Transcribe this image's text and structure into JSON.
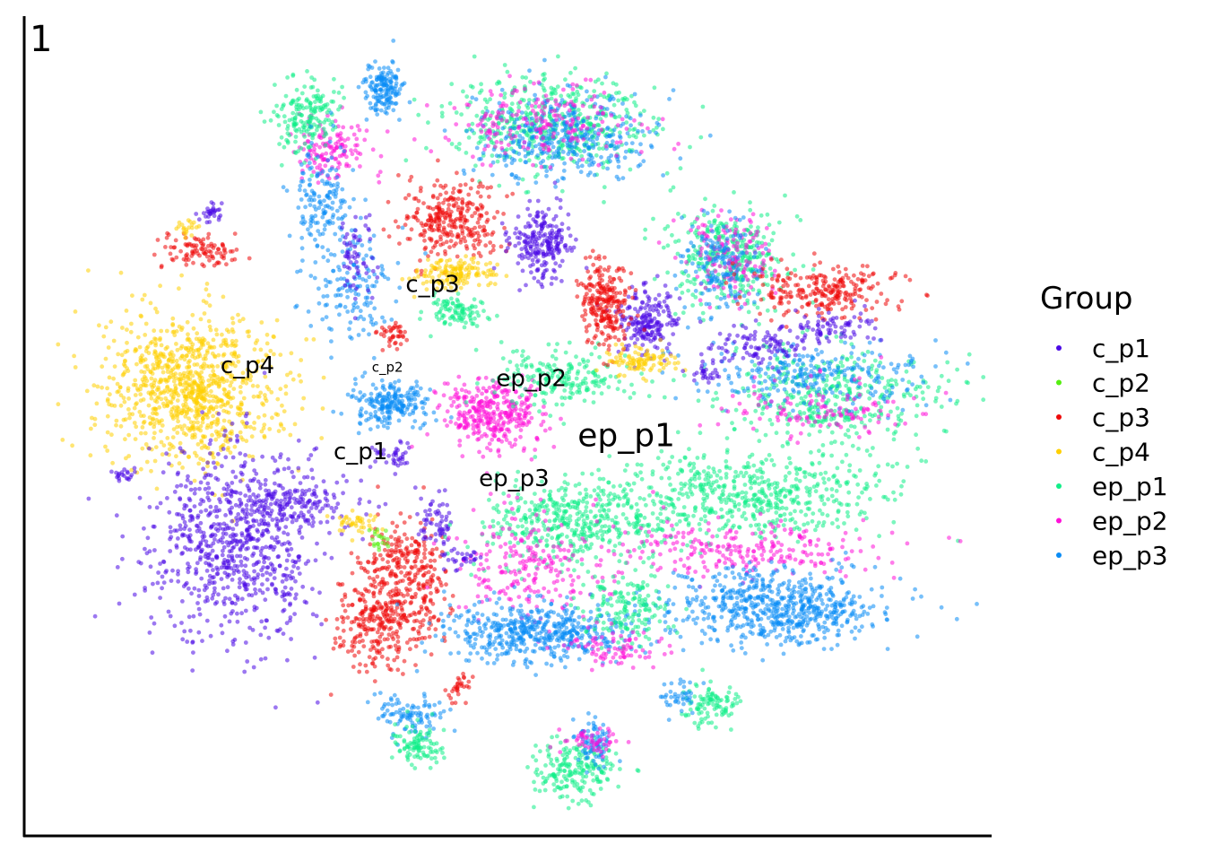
{
  "chart_data": {
    "type": "scatter",
    "panel_label": "1",
    "title": "",
    "xlabel": "",
    "ylabel": "",
    "grid": false,
    "axis_ticks": false,
    "legend_position": "right",
    "legend": {
      "title": "Group",
      "entries": [
        {
          "name": "c_p1",
          "color": "#4B0AE6"
        },
        {
          "name": "c_p2",
          "color": "#55EE11"
        },
        {
          "name": "c_p3",
          "color": "#EE0A0A"
        },
        {
          "name": "c_p4",
          "color": "#FFD000"
        },
        {
          "name": "ep_p1",
          "color": "#11EE88"
        },
        {
          "name": "ep_p2",
          "color": "#FF11D8"
        },
        {
          "name": "ep_p3",
          "color": "#0A8CF5"
        }
      ]
    },
    "xlim": [
      0,
      100
    ],
    "ylim": [
      0,
      100
    ],
    "point_opacity": 0.55,
    "cluster_labels": [
      {
        "text": "c_p1",
        "x": 34.6,
        "y": 45.8,
        "size": "medium"
      },
      {
        "text": "c_p2",
        "x": 37.4,
        "y": 56.6,
        "size": "small"
      },
      {
        "text": "c_p3",
        "x": 42.1,
        "y": 66.4,
        "size": "medium"
      },
      {
        "text": "c_p4",
        "x": 22.8,
        "y": 56.4,
        "size": "medium"
      },
      {
        "text": "ep_p1",
        "x": 62.3,
        "y": 47.4,
        "size": "large"
      },
      {
        "text": "ep_p2",
        "x": 52.4,
        "y": 54.8,
        "size": "medium"
      },
      {
        "text": "ep_p3",
        "x": 50.6,
        "y": 42.5,
        "size": "medium"
      }
    ],
    "clusters": [
      {
        "group": "c_p4",
        "cx": 17.0,
        "cy": 54.5,
        "sx": 4.6,
        "sy": 4.5,
        "n": 950
      },
      {
        "group": "c_p1",
        "cx": 21.5,
        "cy": 35.8,
        "sx": 4.4,
        "sy": 6.0,
        "n": 800
      },
      {
        "group": "c_p1",
        "cx": 28.0,
        "cy": 40.5,
        "sx": 3.2,
        "sy": 1.2,
        "n": 120
      },
      {
        "group": "c_p3",
        "cx": 36.5,
        "cy": 25.8,
        "sx": 2.2,
        "sy": 3.0,
        "n": 280
      },
      {
        "group": "c_p3",
        "cx": 38.5,
        "cy": 32.5,
        "sx": 2.0,
        "sy": 3.0,
        "n": 200
      },
      {
        "group": "c_p3",
        "cx": 41.8,
        "cy": 30.5,
        "sx": 1.0,
        "sy": 3.5,
        "n": 80
      },
      {
        "group": "c_p4",
        "cx": 34.0,
        "cy": 38.0,
        "sx": 1.2,
        "sy": 0.8,
        "n": 40
      },
      {
        "group": "c_p2",
        "cx": 36.5,
        "cy": 36.0,
        "sx": 0.6,
        "sy": 0.6,
        "n": 20
      },
      {
        "group": "c_p1",
        "cx": 42.5,
        "cy": 38.3,
        "sx": 0.9,
        "sy": 1.5,
        "n": 60
      },
      {
        "group": "c_p1",
        "cx": 38.0,
        "cy": 46.3,
        "sx": 1.0,
        "sy": 0.8,
        "n": 40
      },
      {
        "group": "ep_p3",
        "cx": 37.8,
        "cy": 52.5,
        "sx": 2.0,
        "sy": 1.5,
        "n": 220
      },
      {
        "group": "ep_p2",
        "cx": 48.5,
        "cy": 51.5,
        "sx": 2.7,
        "sy": 2.2,
        "n": 350
      },
      {
        "group": "ep_p1",
        "cx": 55.5,
        "cy": 56.0,
        "sx": 3.5,
        "sy": 1.8,
        "n": 200
      },
      {
        "group": "ep_p1",
        "cx": 57.0,
        "cy": 38.0,
        "sx": 5.0,
        "sy": 2.5,
        "n": 450
      },
      {
        "group": "ep_p1",
        "cx": 75.0,
        "cy": 41.5,
        "sx": 7.0,
        "sy": 2.5,
        "n": 550
      },
      {
        "group": "ep_p2",
        "cx": 74.0,
        "cy": 34.5,
        "sx": 7.5,
        "sy": 1.8,
        "n": 250
      },
      {
        "group": "ep_p2",
        "cx": 52.5,
        "cy": 32.5,
        "sx": 4.0,
        "sy": 3.5,
        "n": 220
      },
      {
        "group": "ep_p3",
        "cx": 53.0,
        "cy": 24.5,
        "sx": 5.0,
        "sy": 1.8,
        "n": 500
      },
      {
        "group": "ep_p3",
        "cx": 78.0,
        "cy": 27.5,
        "sx": 5.5,
        "sy": 2.3,
        "n": 650
      },
      {
        "group": "ep_p1",
        "cx": 62.5,
        "cy": 27.5,
        "sx": 2.3,
        "sy": 2.3,
        "n": 160
      },
      {
        "group": "ep_p2",
        "cx": 61.5,
        "cy": 22.5,
        "sx": 2.5,
        "sy": 1.2,
        "n": 80
      },
      {
        "group": "ep_p1",
        "cx": 73.0,
        "cy": 70.5,
        "sx": 3.0,
        "sy": 3.0,
        "n": 350
      },
      {
        "group": "ep_p2",
        "cx": 73.0,
        "cy": 71.0,
        "sx": 2.2,
        "sy": 2.8,
        "n": 150
      },
      {
        "group": "ep_p3",
        "cx": 72.0,
        "cy": 69.5,
        "sx": 2.0,
        "sy": 2.8,
        "n": 150
      },
      {
        "group": "ep_p1",
        "cx": 84.0,
        "cy": 53.5,
        "sx": 6.0,
        "sy": 3.0,
        "n": 400
      },
      {
        "group": "ep_p3",
        "cx": 82.0,
        "cy": 56.0,
        "sx": 5.5,
        "sy": 2.0,
        "n": 250
      },
      {
        "group": "ep_p2",
        "cx": 82.0,
        "cy": 52.0,
        "sx": 5.0,
        "sy": 1.8,
        "n": 120
      },
      {
        "group": "c_p3",
        "cx": 83.5,
        "cy": 66.5,
        "sx": 4.0,
        "sy": 1.5,
        "n": 250
      },
      {
        "group": "c_p1",
        "cx": 84.0,
        "cy": 62.0,
        "sx": 2.5,
        "sy": 1.2,
        "n": 80
      },
      {
        "group": "c_p1",
        "cx": 76.0,
        "cy": 60.0,
        "sx": 2.5,
        "sy": 1.3,
        "n": 100
      },
      {
        "group": "c_p1",
        "cx": 64.5,
        "cy": 63.0,
        "sx": 1.5,
        "sy": 2.0,
        "n": 200
      },
      {
        "group": "c_p3",
        "cx": 60.0,
        "cy": 65.0,
        "sx": 1.3,
        "sy": 2.5,
        "n": 250
      },
      {
        "group": "c_p4",
        "cx": 64.0,
        "cy": 57.8,
        "sx": 1.8,
        "sy": 0.9,
        "n": 100
      },
      {
        "group": "c_p1",
        "cx": 70.5,
        "cy": 56.5,
        "sx": 1.0,
        "sy": 1.0,
        "n": 30
      },
      {
        "group": "ep_p1",
        "cx": 54.5,
        "cy": 87.0,
        "sx": 5.0,
        "sy": 3.0,
        "n": 500
      },
      {
        "group": "ep_p3",
        "cx": 56.0,
        "cy": 85.5,
        "sx": 4.5,
        "sy": 2.5,
        "n": 350
      },
      {
        "group": "ep_p2",
        "cx": 54.0,
        "cy": 87.5,
        "sx": 4.5,
        "sy": 2.5,
        "n": 200
      },
      {
        "group": "c_p3",
        "cx": 44.0,
        "cy": 75.0,
        "sx": 2.5,
        "sy": 2.3,
        "n": 300
      },
      {
        "group": "c_p4",
        "cx": 44.5,
        "cy": 68.8,
        "sx": 2.3,
        "sy": 0.9,
        "n": 150
      },
      {
        "group": "c_p1",
        "cx": 53.5,
        "cy": 72.5,
        "sx": 1.7,
        "sy": 2.3,
        "n": 230
      },
      {
        "group": "ep_p1",
        "cx": 44.5,
        "cy": 64.0,
        "sx": 1.5,
        "sy": 1.0,
        "n": 100
      },
      {
        "group": "ep_p2",
        "cx": 31.5,
        "cy": 84.0,
        "sx": 2.0,
        "sy": 2.0,
        "n": 140
      },
      {
        "group": "ep_p1",
        "cx": 28.8,
        "cy": 88.0,
        "sx": 1.7,
        "sy": 2.2,
        "n": 180
      },
      {
        "group": "ep_p3",
        "cx": 37.0,
        "cy": 91.5,
        "sx": 1.0,
        "sy": 1.5,
        "n": 160
      },
      {
        "group": "ep_p3",
        "cx": 30.5,
        "cy": 77.0,
        "sx": 1.6,
        "sy": 3.5,
        "n": 150
      },
      {
        "group": "ep_p3",
        "cx": 33.5,
        "cy": 67.0,
        "sx": 2.0,
        "sy": 4.0,
        "n": 150
      },
      {
        "group": "c_p1",
        "cx": 34.0,
        "cy": 70.0,
        "sx": 1.0,
        "sy": 3.0,
        "n": 60
      },
      {
        "group": "c_p1",
        "cx": 19.0,
        "cy": 76.5,
        "sx": 0.7,
        "sy": 0.7,
        "n": 30
      },
      {
        "group": "c_p3",
        "cx": 17.5,
        "cy": 71.5,
        "sx": 2.0,
        "sy": 1.0,
        "n": 100
      },
      {
        "group": "c_p4",
        "cx": 16.5,
        "cy": 74.5,
        "sx": 0.7,
        "sy": 0.5,
        "n": 20
      },
      {
        "group": "c_p3",
        "cx": 38.0,
        "cy": 61.2,
        "sx": 0.8,
        "sy": 0.7,
        "n": 40
      },
      {
        "group": "c_p1",
        "cx": 10.0,
        "cy": 44.0,
        "sx": 0.6,
        "sy": 0.4,
        "n": 20
      },
      {
        "group": "ep_p3",
        "cx": 40.0,
        "cy": 14.0,
        "sx": 2.0,
        "sy": 1.3,
        "n": 100
      },
      {
        "group": "ep_p1",
        "cx": 40.5,
        "cy": 10.5,
        "sx": 1.5,
        "sy": 1.3,
        "n": 100
      },
      {
        "group": "ep_p1",
        "cx": 57.0,
        "cy": 7.5,
        "sx": 2.3,
        "sy": 1.7,
        "n": 200
      },
      {
        "group": "ep_p3",
        "cx": 59.0,
        "cy": 11.0,
        "sx": 1.0,
        "sy": 1.5,
        "n": 80
      },
      {
        "group": "ep_p2",
        "cx": 58.5,
        "cy": 11.0,
        "sx": 1.5,
        "sy": 1.0,
        "n": 50
      },
      {
        "group": "ep_p1",
        "cx": 71.0,
        "cy": 15.5,
        "sx": 1.5,
        "sy": 1.3,
        "n": 100
      },
      {
        "group": "ep_p3",
        "cx": 68.0,
        "cy": 16.5,
        "sx": 1.0,
        "sy": 1.0,
        "n": 40
      },
      {
        "group": "c_p1",
        "cx": 45.5,
        "cy": 33.5,
        "sx": 1.0,
        "sy": 0.8,
        "n": 30
      },
      {
        "group": "c_p3",
        "cx": 45.0,
        "cy": 17.5,
        "sx": 0.7,
        "sy": 1.0,
        "n": 30
      }
    ]
  }
}
